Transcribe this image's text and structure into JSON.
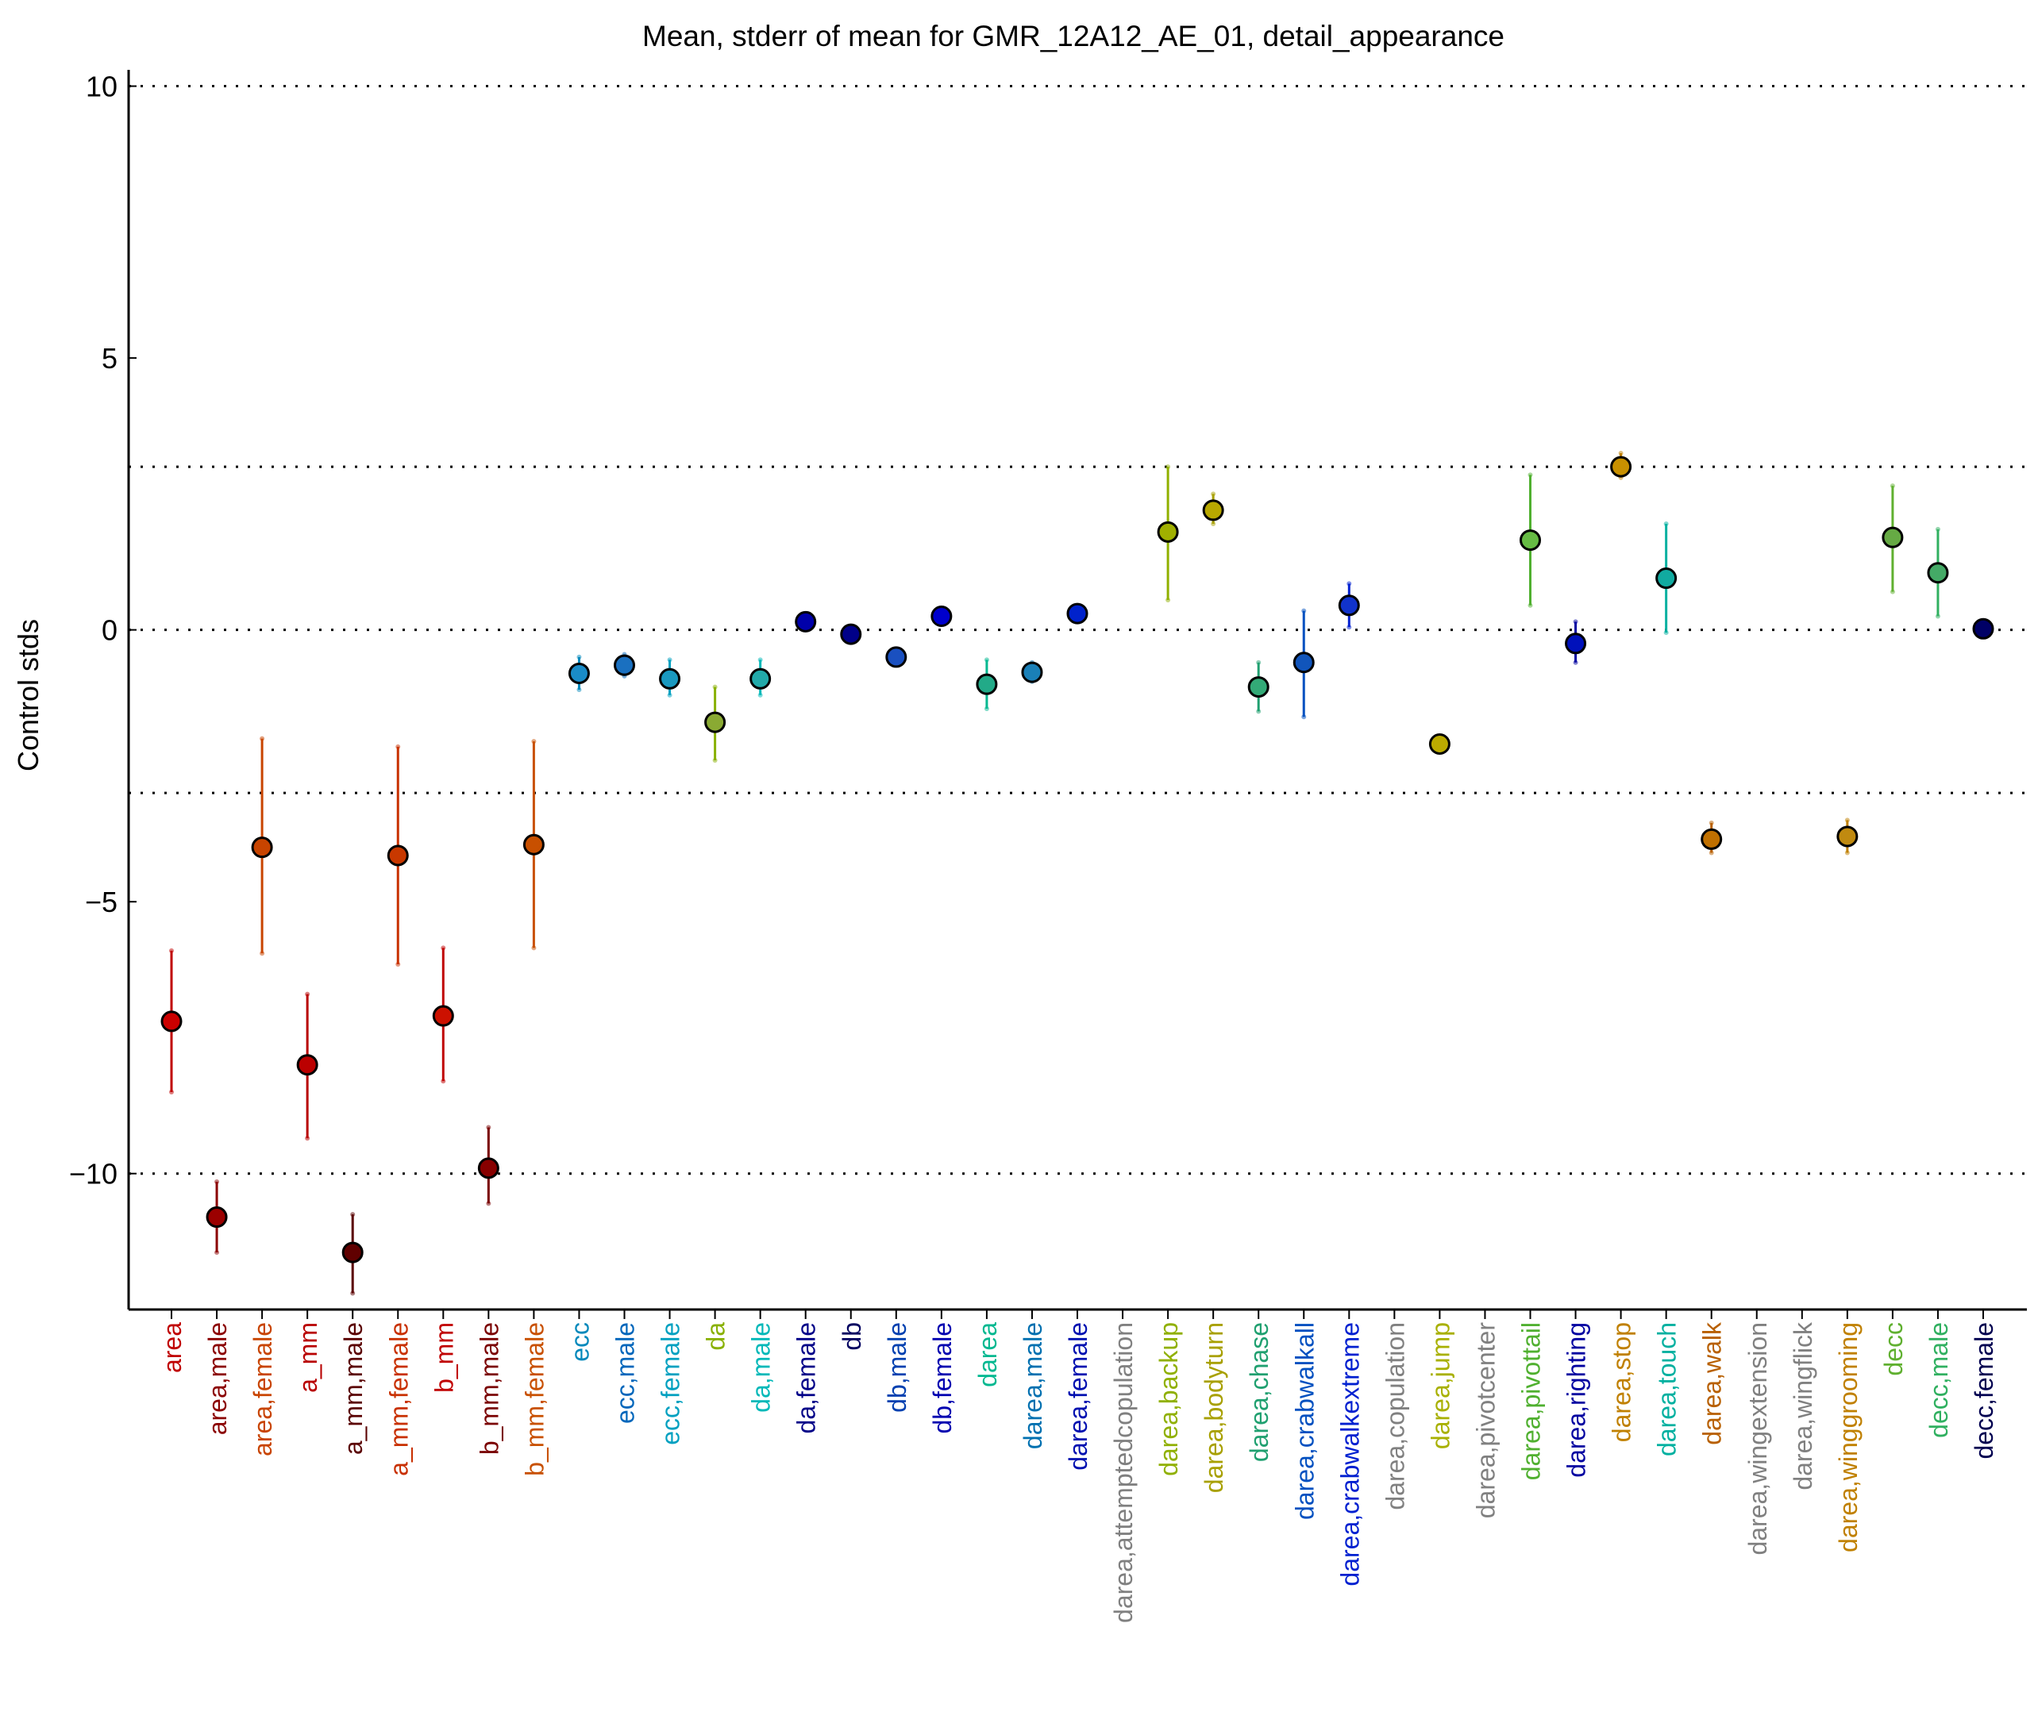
{
  "chart_data": {
    "type": "scatter",
    "title": "Mean, stderr of mean for GMR_12A12_AE_01, detail_appearance",
    "xlabel": "",
    "ylabel": "Control stds",
    "ylim": [
      -12.5,
      10.3
    ],
    "yticks": [
      10,
      5,
      0,
      -5,
      -10
    ],
    "ytick_labels": [
      "10",
      "5",
      "0",
      "−5",
      "−10"
    ],
    "reference_lines": [
      10,
      3,
      0,
      -3,
      -10
    ],
    "grid": false,
    "points": [
      {
        "label": "area",
        "mean": -7.2,
        "err_low": -8.5,
        "err_high": -5.9,
        "color": "#c00000",
        "marker_color": "#cc0000"
      },
      {
        "label": "area,male",
        "mean": -10.8,
        "err_low": -11.45,
        "err_high": -10.15,
        "color": "#8b0000",
        "marker_color": "#9b0000"
      },
      {
        "label": "area,female",
        "mean": -4.0,
        "err_low": -5.95,
        "err_high": -2.0,
        "color": "#c84400",
        "marker_color": "#c84400"
      },
      {
        "label": "a_mm",
        "mean": -8.0,
        "err_low": -9.35,
        "err_high": -6.7,
        "color": "#b80000",
        "marker_color": "#bb0000"
      },
      {
        "label": "a_mm,male",
        "mean": -11.45,
        "err_low": -12.2,
        "err_high": -10.75,
        "color": "#5a0000",
        "marker_color": "#600000"
      },
      {
        "label": "a_mm,female",
        "mean": -4.15,
        "err_low": -6.15,
        "err_high": -2.15,
        "color": "#c83000",
        "marker_color": "#c83800"
      },
      {
        "label": "b_mm",
        "mean": -7.1,
        "err_low": -8.3,
        "err_high": -5.85,
        "color": "#c00000",
        "marker_color": "#cc1100"
      },
      {
        "label": "b_mm,male",
        "mean": -9.9,
        "err_low": -10.55,
        "err_high": -9.15,
        "color": "#7a0000",
        "marker_color": "#880000"
      },
      {
        "label": "b_mm,female",
        "mean": -3.95,
        "err_low": -5.85,
        "err_high": -2.05,
        "color": "#c85000",
        "marker_color": "#c85000"
      },
      {
        "label": "ecc",
        "mean": -0.8,
        "err_low": -1.1,
        "err_high": -0.5,
        "color": "#0088bb",
        "marker_color": "#1a8cc8"
      },
      {
        "label": "ecc,male",
        "mean": -0.65,
        "err_low": -0.85,
        "err_high": -0.45,
        "color": "#0066bb",
        "marker_color": "#1a70c0"
      },
      {
        "label": "ecc,female",
        "mean": -0.9,
        "err_low": -1.2,
        "err_high": -0.55,
        "color": "#00a0c0",
        "marker_color": "#1a99c0"
      },
      {
        "label": "da",
        "mean": -1.7,
        "err_low": -2.4,
        "err_high": -1.05,
        "color": "#88b000",
        "marker_color": "#8aaa33"
      },
      {
        "label": "da,male",
        "mean": -0.9,
        "err_low": -1.2,
        "err_high": -0.55,
        "color": "#00b8b8",
        "marker_color": "#22aaaa"
      },
      {
        "label": "da,female",
        "mean": 0.15,
        "err_low": 0.05,
        "err_high": 0.25,
        "color": "#000088",
        "marker_color": "#0000aa"
      },
      {
        "label": "db",
        "mean": -0.08,
        "err_low": -0.18,
        "err_high": 0.02,
        "color": "#000060",
        "marker_color": "#000088"
      },
      {
        "label": "db,male",
        "mean": -0.5,
        "err_low": -0.65,
        "err_high": -0.35,
        "color": "#0040b0",
        "marker_color": "#1a50c0"
      },
      {
        "label": "db,female",
        "mean": 0.25,
        "err_low": 0.15,
        "err_high": 0.35,
        "color": "#0000b0",
        "marker_color": "#0000cc"
      },
      {
        "label": "darea",
        "mean": -1.0,
        "err_low": -1.45,
        "err_high": -0.55,
        "color": "#00b890",
        "marker_color": "#22aa88"
      },
      {
        "label": "darea,male",
        "mean": -0.78,
        "err_low": -0.95,
        "err_high": -0.6,
        "color": "#0070b0",
        "marker_color": "#1a80b8"
      },
      {
        "label": "darea,female",
        "mean": 0.3,
        "err_low": 0.2,
        "err_high": 0.4,
        "color": "#0010b0",
        "marker_color": "#0022cc"
      },
      {
        "label": "darea,attemptedcopulation",
        "mean": null,
        "err_low": null,
        "err_high": null,
        "color": "#808080",
        "marker_color": "#808080"
      },
      {
        "label": "darea,backup",
        "mean": 1.8,
        "err_low": 0.55,
        "err_high": 3.0,
        "color": "#90b000",
        "marker_color": "#a0b000"
      },
      {
        "label": "darea,bodyturn",
        "mean": 2.2,
        "err_low": 1.95,
        "err_high": 2.5,
        "color": "#a8a000",
        "marker_color": "#b8a800"
      },
      {
        "label": "darea,chase",
        "mean": -1.05,
        "err_low": -1.5,
        "err_high": -0.6,
        "color": "#20a070",
        "marker_color": "#33aa77"
      },
      {
        "label": "darea,crabwalkall",
        "mean": -0.6,
        "err_low": -1.6,
        "err_high": 0.35,
        "color": "#0050c0",
        "marker_color": "#1155bb"
      },
      {
        "label": "darea,crabwalkextreme",
        "mean": 0.45,
        "err_low": 0.05,
        "err_high": 0.85,
        "color": "#0020d0",
        "marker_color": "#1133cc"
      },
      {
        "label": "darea,copulation",
        "mean": null,
        "err_low": null,
        "err_high": null,
        "color": "#808080",
        "marker_color": "#808080"
      },
      {
        "label": "darea,jump",
        "mean": -2.1,
        "err_low": -2.2,
        "err_high": -2.0,
        "color": "#a8b000",
        "marker_color": "#bbaa00"
      },
      {
        "label": "darea,pivotcenter",
        "mean": null,
        "err_low": null,
        "err_high": null,
        "color": "#808080",
        "marker_color": "#808080"
      },
      {
        "label": "darea,pivottail",
        "mean": 1.65,
        "err_low": 0.45,
        "err_high": 2.85,
        "color": "#50b030",
        "marker_color": "#66bb44"
      },
      {
        "label": "darea,righting",
        "mean": -0.25,
        "err_low": -0.6,
        "err_high": 0.15,
        "color": "#0000a0",
        "marker_color": "#0011bb"
      },
      {
        "label": "darea,stop",
        "mean": 3.0,
        "err_low": 2.8,
        "err_high": 3.25,
        "color": "#c08000",
        "marker_color": "#c89000"
      },
      {
        "label": "darea,touch",
        "mean": 0.95,
        "err_low": -0.05,
        "err_high": 1.95,
        "color": "#00b0a0",
        "marker_color": "#11aaa0"
      },
      {
        "label": "darea,walk",
        "mean": -3.85,
        "err_low": -4.1,
        "err_high": -3.55,
        "color": "#b86000",
        "marker_color": "#c07000"
      },
      {
        "label": "darea,wingextension",
        "mean": null,
        "err_low": null,
        "err_high": null,
        "color": "#808080",
        "marker_color": "#808080"
      },
      {
        "label": "darea,wingflick",
        "mean": null,
        "err_low": null,
        "err_high": null,
        "color": "#808080",
        "marker_color": "#808080"
      },
      {
        "label": "darea,winggrooming",
        "mean": -3.8,
        "err_low": -4.1,
        "err_high": -3.5,
        "color": "#c08000",
        "marker_color": "#c08a10"
      },
      {
        "label": "decc",
        "mean": 1.7,
        "err_low": 0.7,
        "err_high": 2.65,
        "color": "#60b030",
        "marker_color": "#66aa44"
      },
      {
        "label": "decc,male",
        "mean": 1.05,
        "err_low": 0.25,
        "err_high": 1.85,
        "color": "#30b060",
        "marker_color": "#44aa66"
      },
      {
        "label": "decc,female",
        "mean": 0.02,
        "err_low": -0.05,
        "err_high": 0.08,
        "color": "#000050",
        "marker_color": "#000066"
      }
    ]
  }
}
